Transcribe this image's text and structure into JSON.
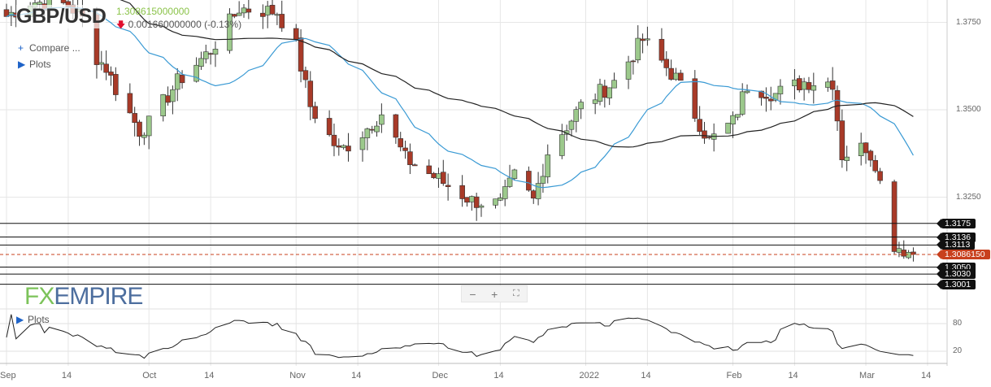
{
  "header": {
    "symbol": "GBP/USD",
    "price": "1.308615000000",
    "change": "0.001660000000 (-0.13%)",
    "change_direction": "down"
  },
  "menu": {
    "compare": "Compare ...",
    "plots": "Plots"
  },
  "logo": {
    "fx": "FX",
    "empire": "EMPIRE"
  },
  "zoom_controls": {
    "minus": "−",
    "plus": "+",
    "fullscreen": "⛶"
  },
  "lower_panel": {
    "plots": "Plots",
    "axis": [
      "80",
      "20"
    ]
  },
  "colors": {
    "up": "#9cc98c",
    "down": "#a83a28",
    "sma_fast": "#3a9ad4",
    "sma_slow": "#222222",
    "current": "#c8401e"
  },
  "chart_data": {
    "type": "candlestick",
    "symbol": "GBP/USD",
    "y_ticks": [
      "1.3750",
      "1.3500",
      "1.3250"
    ],
    "ylim": [
      1.297,
      1.388
    ],
    "x_ticks": [
      "Sep",
      "14",
      "Oct",
      "14",
      "Nov",
      "14",
      "Dec",
      "14",
      "2022",
      "14",
      "Feb",
      "14",
      "Mar",
      "14"
    ],
    "x_tick_dates": [
      "2021-09-01",
      "2021-09-14",
      "2021-10-01",
      "2021-10-14",
      "2021-11-01",
      "2021-11-14",
      "2021-12-01",
      "2021-12-14",
      "2022-01-01",
      "2022-01-14",
      "2022-02-01",
      "2022-02-14",
      "2022-03-01",
      "2022-03-14"
    ],
    "date_range": [
      "2021-09-01",
      "2022-03-11"
    ],
    "close_path": [
      [
        "2021-09-01",
        1.3767
      ],
      [
        "2021-09-06",
        1.381
      ],
      [
        "2021-09-14",
        1.38
      ],
      [
        "2021-09-17",
        1.376
      ],
      [
        "2021-09-20",
        1.365
      ],
      [
        "2021-09-22",
        1.362
      ],
      [
        "2021-09-24",
        1.356
      ],
      [
        "2021-09-29",
        1.344
      ],
      [
        "2021-10-01",
        1.346
      ],
      [
        "2021-10-07",
        1.358
      ],
      [
        "2021-10-14",
        1.367
      ],
      [
        "2021-10-20",
        1.379
      ],
      [
        "2021-10-28",
        1.378
      ],
      [
        "2021-11-01",
        1.368
      ],
      [
        "2021-11-04",
        1.351
      ],
      [
        "2021-11-10",
        1.338
      ],
      [
        "2021-11-14",
        1.342
      ],
      [
        "2021-11-19",
        1.349
      ],
      [
        "2021-11-24",
        1.336
      ],
      [
        "2021-12-01",
        1.33
      ],
      [
        "2021-12-08",
        1.324
      ],
      [
        "2021-12-14",
        1.323
      ],
      [
        "2021-12-17",
        1.331
      ],
      [
        "2021-12-21",
        1.324
      ],
      [
        "2021-12-24",
        1.338
      ],
      [
        "2021-12-31",
        1.351
      ],
      [
        "2022-01-07",
        1.358
      ],
      [
        "2022-01-13",
        1.37
      ],
      [
        "2022-01-20",
        1.359
      ],
      [
        "2022-01-27",
        1.341
      ],
      [
        "2022-02-01",
        1.3465
      ],
      [
        "2022-02-04",
        1.357
      ],
      [
        "2022-02-10",
        1.3545
      ],
      [
        "2022-02-16",
        1.358
      ],
      [
        "2022-02-22",
        1.358
      ],
      [
        "2022-02-24",
        1.337
      ],
      [
        "2022-03-01",
        1.3395
      ],
      [
        "2022-03-03",
        1.335
      ],
      [
        "2022-03-07",
        1.3115
      ],
      [
        "2022-03-11",
        1.30862
      ]
    ],
    "indicators": [
      {
        "name": "SMA fast",
        "period": 20
      },
      {
        "name": "SMA slow",
        "period": 50
      },
      {
        "name": "RSI",
        "period": 14,
        "ylim": [
          0,
          100
        ]
      }
    ],
    "levels": [
      {
        "value": 1.3175,
        "label": "1.3175"
      },
      {
        "value": 1.3136,
        "label": "1.3136"
      },
      {
        "value": 1.3113,
        "label": "1.3113"
      },
      {
        "value": 1.308615,
        "label": "1.3086150",
        "current": true
      },
      {
        "value": 1.305,
        "label": "1.3050"
      },
      {
        "value": 1.303,
        "label": "1.3030"
      },
      {
        "value": 1.3001,
        "label": "1.3001"
      }
    ]
  }
}
